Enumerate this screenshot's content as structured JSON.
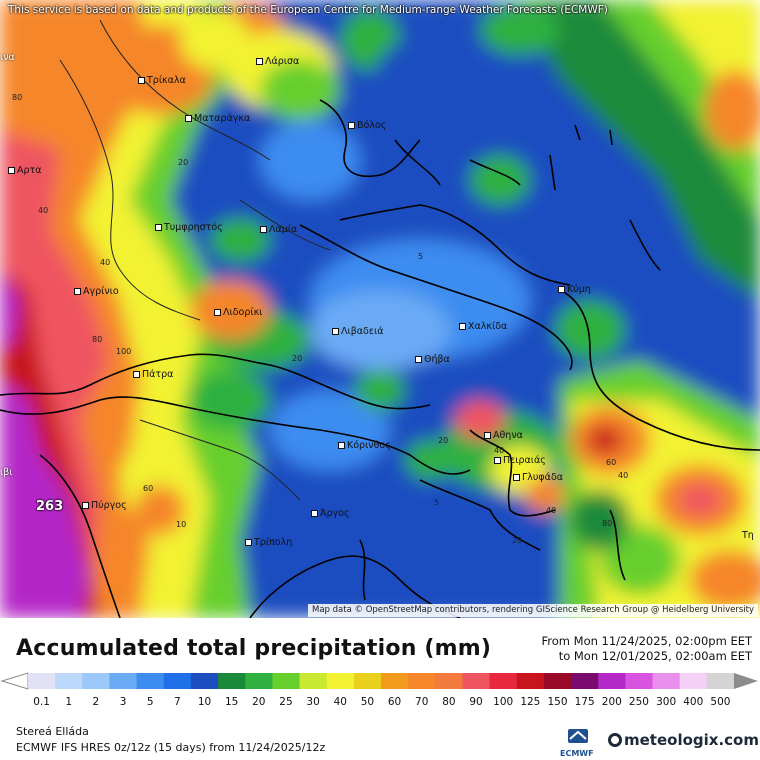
{
  "attribution_top": "This service is based on data and products of the European Centre for Medium-range Weather Forecasts (ECMWF)",
  "attribution_bottom": "Map data © OpenStreetMap contributors, rendering GIScience Research Group @ Heidelberg University",
  "title": "Accumulated total precipitation (mm)",
  "period": {
    "from": "From Mon 11/24/2025, 02:00pm EET",
    "to": "to Mon 12/01/2025, 02:00am EET"
  },
  "legend": {
    "labels": [
      "0.1",
      "1",
      "2",
      "3",
      "5",
      "7",
      "10",
      "15",
      "20",
      "25",
      "30",
      "40",
      "50",
      "60",
      "70",
      "80",
      "90",
      "100",
      "125",
      "150",
      "175",
      "200",
      "250",
      "300",
      "400",
      "500"
    ],
    "colors": [
      "#e1e1f5",
      "#bcd8fb",
      "#9cc7f9",
      "#6aaaf5",
      "#3d8cf0",
      "#1f6fe6",
      "#1c4ec0",
      "#1a8a3a",
      "#2fb040",
      "#66cf2e",
      "#c8e832",
      "#f2f232",
      "#e8d01c",
      "#f29a1c",
      "#f5862a",
      "#f27a3c",
      "#ef5560",
      "#e8283c",
      "#c8141c",
      "#9a0a28",
      "#7a0a6e",
      "#b428c8",
      "#d854e0",
      "#e890ec",
      "#f4d0f6",
      "#d4d4d4"
    ]
  },
  "region": "Stereá Elláda",
  "model": "ECMWF IFS HRES 0z/12z (15 days) from 11/24/2025/12z",
  "logos": {
    "ecmwf": "ECMWF",
    "meteologix": "meteologix.com"
  },
  "cities": [
    {
      "name": "Λάρισα"
    },
    {
      "name": "Τρίκαλα"
    },
    {
      "name": "Ματαράγκα"
    },
    {
      "name": "Βόλος"
    },
    {
      "name": "Αρτα"
    },
    {
      "name": "Τυμφρηστός"
    },
    {
      "name": "Λαμία"
    },
    {
      "name": "Κύμη"
    },
    {
      "name": "Αγρίνιο"
    },
    {
      "name": "Λιδορίκι"
    },
    {
      "name": "Λιβαδειά"
    },
    {
      "name": "Χαλκίδα"
    },
    {
      "name": "Θήβα"
    },
    {
      "name": "Πάτρα"
    },
    {
      "name": "Αθηνα"
    },
    {
      "name": "Κόρινθος"
    },
    {
      "name": "Πειραιάς"
    },
    {
      "name": "Γλυφάδα"
    },
    {
      "name": "Πύργος"
    },
    {
      "name": "Άργος"
    },
    {
      "name": "Τρίπολη"
    }
  ],
  "edge_labels": {
    "west_top": "ινα",
    "west_mid": "ιβι",
    "east_bottom": "Τη"
  },
  "max_value": "263",
  "contour_labels": [
    "80",
    "20",
    "40",
    "80",
    "100",
    "40",
    "20",
    "5",
    "20",
    "40",
    "40",
    "60",
    "20",
    "40",
    "60",
    "10",
    "5",
    "80"
  ]
}
